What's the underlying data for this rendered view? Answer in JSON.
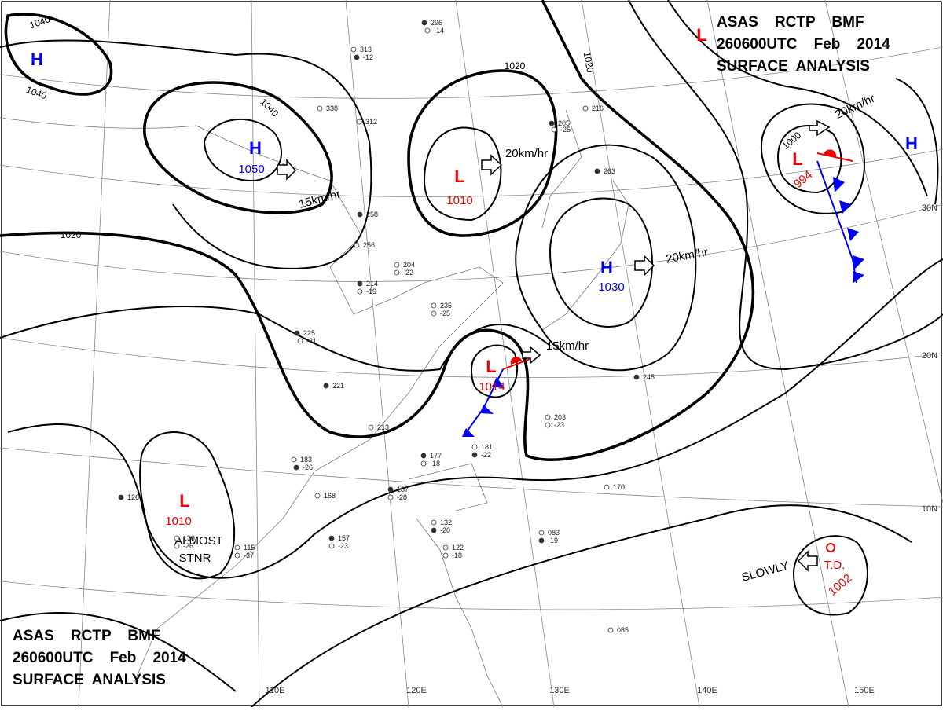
{
  "header": {
    "lines": [
      "ASAS    RCTP    BMF",
      "260600UTC    Feb    2014",
      "SURFACE  ANALYSIS"
    ]
  },
  "systems": [
    {
      "symbol": "H"
    },
    {
      "symbol": "H",
      "pressure": "1050"
    },
    {
      "symbol": "L",
      "pressure": "1010"
    },
    {
      "symbol": "L",
      "pressure": "994"
    },
    {
      "symbol": "H"
    },
    {
      "symbol": "H",
      "pressure": "1030"
    },
    {
      "symbol": "L",
      "pressure": "1014"
    },
    {
      "symbol": "L",
      "pressure": "1010"
    },
    {
      "symbol": "L"
    }
  ],
  "tropical": {
    "label": "T.D.",
    "pressure": "1002"
  },
  "isobar_labels": [
    "1040",
    "1040",
    "1040",
    "1020",
    "1020",
    "1020",
    "1000"
  ],
  "motions": [
    "15km/hr",
    "20km/hr",
    "20km/hr",
    "20km/hr",
    "15km/hr",
    "SLOWLY",
    "ALMOST",
    "STNR"
  ],
  "graticule": {
    "lon": [
      "110E",
      "120E",
      "130E",
      "140E",
      "150E"
    ],
    "lat": [
      "30N",
      "20N",
      "10N"
    ]
  },
  "stations": [
    "296",
    "-14",
    "313",
    "-12",
    "338",
    "312",
    "205",
    "-25",
    "216",
    "263",
    "235",
    "-25",
    "225",
    "-21",
    "183",
    "-26",
    "139",
    "-26",
    "126",
    "115",
    "-37",
    "157",
    "-23",
    "132",
    "-20",
    "122",
    "-18",
    "177",
    "-18",
    "181",
    "-22",
    "203",
    "-23",
    "245",
    "170",
    "083",
    "-19",
    "085",
    "168",
    "187",
    "-28",
    "213",
    "221",
    "204",
    "-22",
    "214",
    "-19",
    "256",
    "258"
  ]
}
